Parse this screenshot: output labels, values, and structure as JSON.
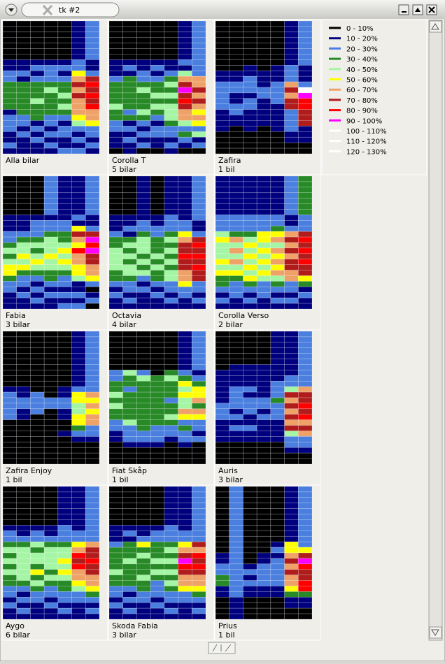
{
  "window": {
    "title": "tk #2"
  },
  "legend": [
    {
      "label": "0 - 10%",
      "color": "#000000"
    },
    {
      "label": "10 - 20%",
      "color": "#00007f"
    },
    {
      "label": "20 - 30%",
      "color": "#4a7fe0"
    },
    {
      "label": "30 - 40%",
      "color": "#278a27"
    },
    {
      "label": "40 - 50%",
      "color": "#a4f5a4"
    },
    {
      "label": "50 - 60%",
      "color": "#ffff00"
    },
    {
      "label": "60 - 70%",
      "color": "#efa268"
    },
    {
      "label": "70 - 80%",
      "color": "#b01c1c"
    },
    {
      "label": "80 - 90%",
      "color": "#ff0000"
    },
    {
      "label": "90 - 100%",
      "color": "#ff00ff"
    },
    {
      "label": "100 - 110%",
      "color": "#ffffff"
    },
    {
      "label": "110 - 120%",
      "color": "#ffffff"
    },
    {
      "label": "120 - 130%",
      "color": "#ffffff"
    }
  ],
  "panels": [
    {
      "name": "Alla bilar",
      "columns": [
        "000000011223333312221121",
        "000000011213333332212111",
        "000000012123334333121211",
        "000000012223433332212121",
        "000000012123343432122112",
        "111111122567676665421212",
        "222222211278787866522121"
      ]
    },
    {
      "name": "Corolla T",
      "count": "5 bilar",
      "columns": [
        "000000011123333433221110",
        "000000012133333323121211",
        "000000011223433343212120",
        "000000012123343432122110",
        "000000011234343444322121",
        "111111121467978766423210",
        "222222222266767656524120"
      ]
    },
    {
      "name": "Zafira",
      "count": "1 bil",
      "columns": [
        "000000000112222211110000",
        "000000000112211221100000",
        "000000001122212211110000",
        "000000000111221111100000",
        "000000001112222111110000",
        "111111112226767722221100",
        "222222221112a98877711100"
      ]
    },
    {
      "name": "Fabia",
      "count": "3 bilar",
      "columns": [
        "000000011122343455322111",
        "000000011123445453221211",
        "000000012223434543212121",
        "222222212234445443321211",
        "111111112233454543221212",
        "111111121576586655411212",
        "222222211279897766520120"
      ]
    },
    {
      "name": "Octavia",
      "count": "4 bilar",
      "columns": [
        "000000011123344443321211",
        "000000011213434344322121",
        "111111112234443434212111",
        "000000011223334343321211",
        "111111122234343434422121",
        "111111112256778776652211",
        "222222221127878787722121"
      ]
    },
    {
      "name": "Corolla Verso",
      "count": "2 bilar",
      "columns": [
        "111111122245444545332121",
        "111111122236464645322211",
        "111111122234545454532121",
        "111111122255454545422211",
        "111111122356465656432121",
        "222222211267676776622121",
        "333333322278787877531211"
      ]
    },
    {
      "name": "Zafira Enjoy",
      "count": "1 bil",
      "columns": [
        "000000000012222200000000",
        "000000000011221100000000",
        "000000000002222000000000",
        "000000000000220000000000",
        "000000000011221100100000",
        "111111111125544553210000",
        "222222222226565662210000"
      ]
    },
    {
      "name": "Fiat Skåp",
      "count": "1 bil",
      "columns": [
        "000000022334343322110000",
        "000000043323333342221000",
        "000000024333333333221000",
        "000000003333333332221000",
        "000000034333233432210000",
        "111111123545446523221000",
        "222222212355636522120000"
      ]
    },
    {
      "name": "Auris",
      "count": "3 bilar",
      "columns": [
        "000000011111122211110000",
        "000000111122221212110000",
        "000000111121222112110000",
        "000000111111221211110000",
        "111111111222322211110000",
        "111111112247676767422100",
        "222222222267787867622100"
      ]
    },
    {
      "name": "Aygo",
      "count": "6 bilar",
      "columns": [
        "000000012234343433221211",
        "000000011234444443212121",
        "000000012243443534322111",
        "000000011234444343221211",
        "111111122234454543322121",
        "111111112256878665422111",
        "222222222267787766532121"
      ]
    },
    {
      "name": "Skoda Fabia",
      "count": "3 bilar",
      "columns": [
        "000000011123333433221211",
        "000000012133343333212121",
        "000000011253433343322111",
        "000000012233343432221211",
        "111111122234343434322121",
        "111111112256798766522111",
        "222222222276878766532121"
      ]
    },
    {
      "name": "Prius",
      "count": "1 bil",
      "columns": [
        "000000000000112233110000",
        "222222222222222222221111",
        "000000000000001212110000",
        "000000000000112222110000",
        "000000000012122222110000",
        "111111111155676766531100",
        "222222222225798778831100"
      ]
    }
  ]
}
